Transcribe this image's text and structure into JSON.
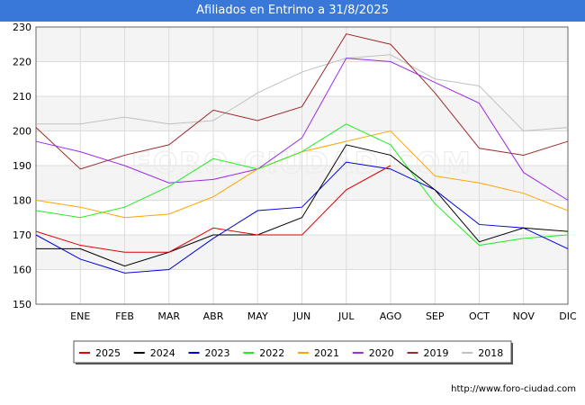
{
  "chart_data": {
    "type": "line",
    "title": "Afiliados en Entrimo a 31/8/2025",
    "xlabel": "",
    "ylabel": "",
    "ylim": [
      150,
      230
    ],
    "yticks": [
      150,
      160,
      170,
      180,
      190,
      200,
      210,
      220,
      230
    ],
    "categories": [
      "",
      "ENE",
      "FEB",
      "MAR",
      "ABR",
      "MAY",
      "JUN",
      "JUL",
      "AGO",
      "SEP",
      "OCT",
      "NOV",
      "DIC"
    ],
    "legend_position": "bottom",
    "grid": true,
    "series": [
      {
        "name": "2025",
        "color": "#e00000",
        "values": [
          171,
          167,
          165,
          165,
          172,
          170,
          170,
          183,
          190,
          null,
          null,
          null,
          null
        ]
      },
      {
        "name": "2024",
        "color": "#000000",
        "values": [
          166,
          166,
          161,
          165,
          170,
          170,
          175,
          196,
          193,
          183,
          168,
          172,
          171
        ]
      },
      {
        "name": "2023",
        "color": "#0000dd",
        "values": [
          170,
          163,
          159,
          160,
          169,
          177,
          178,
          191,
          189,
          183,
          173,
          172,
          166
        ]
      },
      {
        "name": "2022",
        "color": "#22ee22",
        "values": [
          177,
          175,
          178,
          184,
          192,
          189,
          194,
          202,
          196,
          179,
          167,
          169,
          170
        ]
      },
      {
        "name": "2021",
        "color": "#ffa500",
        "values": [
          180,
          178,
          175,
          176,
          181,
          189,
          194,
          197,
          200,
          187,
          185,
          182,
          177
        ]
      },
      {
        "name": "2020",
        "color": "#9d2ae8",
        "values": [
          197,
          194,
          190,
          185,
          186,
          189,
          198,
          221,
          220,
          214,
          208,
          188,
          180
        ]
      },
      {
        "name": "2019",
        "color": "#9c2a2a",
        "values": [
          201,
          189,
          193,
          196,
          206,
          203,
          207,
          228,
          225,
          211,
          195,
          193,
          197
        ]
      },
      {
        "name": "2018",
        "color": "#c0c0c0",
        "values": [
          202,
          202,
          204,
          202,
          203,
          211,
          217,
          221,
          222,
          215,
          213,
          200,
          201
        ]
      }
    ]
  },
  "source": "http://www.foro-ciudad.com",
  "watermark": "FORO-CIUDAD.COM"
}
